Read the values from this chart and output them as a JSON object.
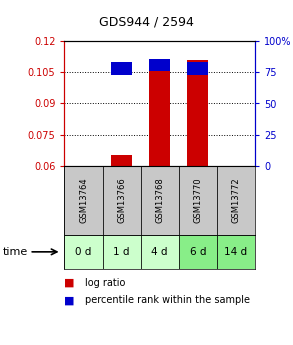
{
  "title": "GDS944 / 2594",
  "samples": [
    "GSM13764",
    "GSM13766",
    "GSM13768",
    "GSM13770",
    "GSM13772"
  ],
  "time_labels": [
    "0 d",
    "1 d",
    "4 d",
    "6 d",
    "14 d"
  ],
  "log_ratio": [
    0.06,
    0.065,
    0.109,
    0.111,
    0.06
  ],
  "percentile_rank": [
    0.0,
    0.781,
    0.812,
    0.781,
    0.0
  ],
  "ylim_left": [
    0.06,
    0.12
  ],
  "ylim_right": [
    0.0,
    1.0
  ],
  "yticks_left": [
    0.06,
    0.075,
    0.09,
    0.105,
    0.12
  ],
  "yticks_right": [
    0.0,
    0.25,
    0.5,
    0.75,
    1.0
  ],
  "ytick_labels_right": [
    "0",
    "25",
    "50",
    "75",
    "100%"
  ],
  "ytick_labels_left": [
    "0.06",
    "0.075",
    "0.09",
    "0.105",
    "0.12"
  ],
  "bar_color_red": "#cc0000",
  "bar_color_blue": "#0000cc",
  "bar_bottom": 0.06,
  "bar_width": 0.55,
  "bg_color_sample": "#c8c8c8",
  "time_colors": [
    "#ccffcc",
    "#ccffcc",
    "#ccffcc",
    "#88ee88",
    "#88ee88"
  ],
  "legend_red": "log ratio",
  "legend_blue": "percentile rank within the sample",
  "left_axis_color": "#cc0000",
  "right_axis_color": "#0000cc",
  "blue_bar_size": 0.006
}
